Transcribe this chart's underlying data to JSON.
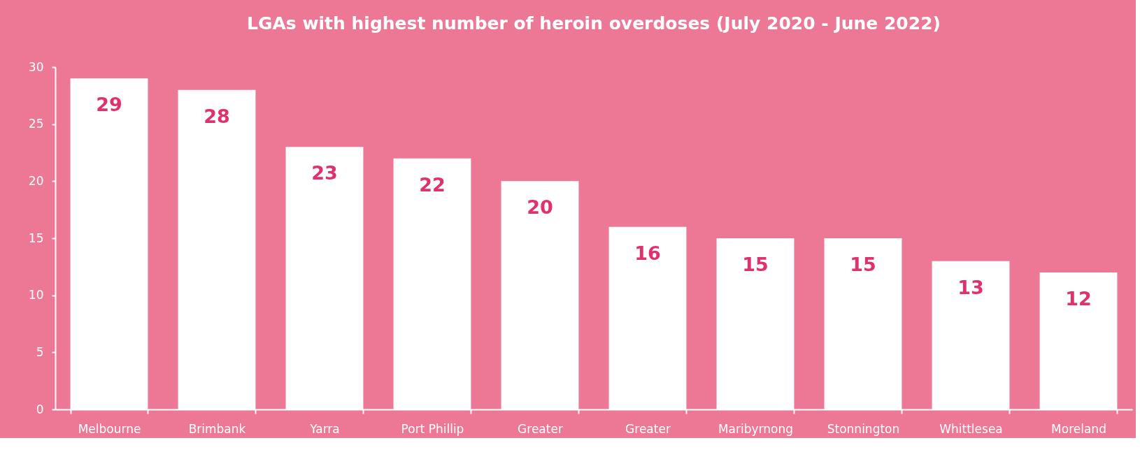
{
  "chart_data": {
    "type": "bar",
    "title": "LGAs with highest number of heroin overdoses (July 2020 - June 2022)",
    "categories": [
      "Melbourne",
      "Brimbank",
      "Yarra",
      "Port Phillip",
      "Greater",
      "Greater",
      "Maribyrnong",
      "Stonnington",
      "Whittlesea",
      "Moreland"
    ],
    "values": [
      29,
      28,
      23,
      22,
      20,
      16,
      15,
      15,
      13,
      12
    ],
    "color": "#ffffff",
    "ylim": [
      0,
      30
    ],
    "yticks": [
      0,
      5,
      10,
      15,
      20,
      25,
      30
    ],
    "grid": false,
    "data_labels": true
  }
}
